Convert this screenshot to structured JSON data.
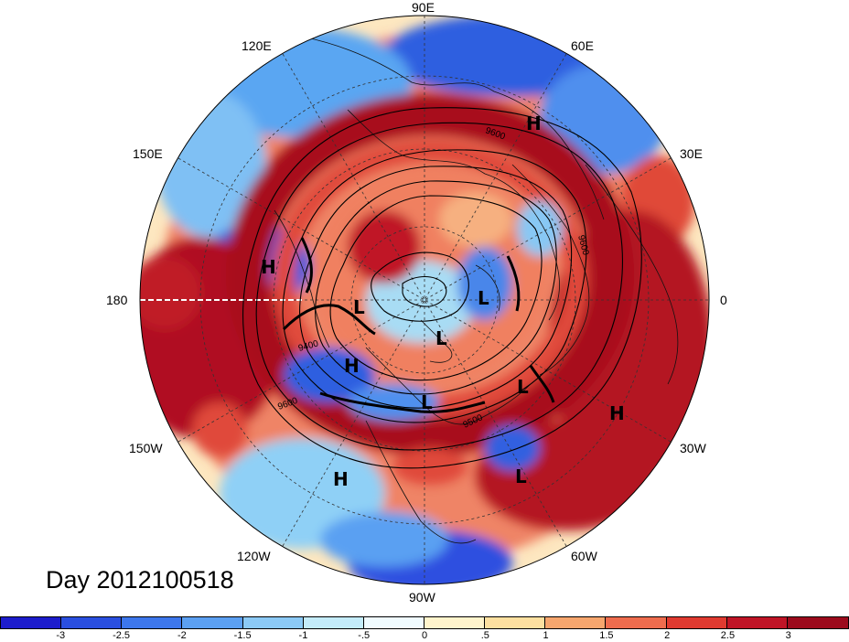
{
  "map": {
    "projection": "north-polar-stereographic",
    "longitude_labels": {
      "90E": "90E",
      "60E": "60E",
      "30E": "30E",
      "0": "0",
      "30W": "30W",
      "60W": "60W",
      "90W": "90W",
      "120W": "120W",
      "150W": "150W",
      "180": "180",
      "150E": "150E",
      "120E": "120E"
    },
    "contour_labels": [
      "9400",
      "9600",
      "9500",
      "9600",
      "9600"
    ],
    "pressure_centers": [
      {
        "type": "H",
        "label": "H"
      },
      {
        "type": "H",
        "label": "H"
      },
      {
        "type": "H",
        "label": "H"
      },
      {
        "type": "H",
        "label": "H"
      },
      {
        "type": "H",
        "label": "H"
      },
      {
        "type": "L",
        "label": "L"
      },
      {
        "type": "L",
        "label": "L"
      },
      {
        "type": "L",
        "label": "L"
      },
      {
        "type": "L",
        "label": "L"
      },
      {
        "type": "L",
        "label": "L"
      },
      {
        "type": "L",
        "label": "L"
      }
    ],
    "day_label": "Day 2012100518",
    "colors": {
      "deep_blue": "#1f1fd6",
      "blue": "#2e5fe6",
      "light_blue": "#5aa0f0",
      "pale_blue": "#a8e0f8",
      "cream": "#fff8d8",
      "orange": "#f4a46a",
      "red": "#e84a3a",
      "dark_red": "#b4101e"
    }
  },
  "colorbar": {
    "ticks": [
      "-3",
      "-2.5",
      "-2",
      "-1.5",
      "-1",
      "-.5",
      "0",
      ".5",
      "1",
      "1.5",
      "2",
      "2.5",
      "3"
    ],
    "colors": [
      "#1d1dcc",
      "#2a4fe0",
      "#3d77ec",
      "#5ca0f2",
      "#8ccaf6",
      "#c4ecfa",
      "#f0fbff",
      "#fff4cc",
      "#fde0a0",
      "#f6a66e",
      "#ee6c4e",
      "#e03a30",
      "#c01426",
      "#9c0a1c"
    ]
  }
}
